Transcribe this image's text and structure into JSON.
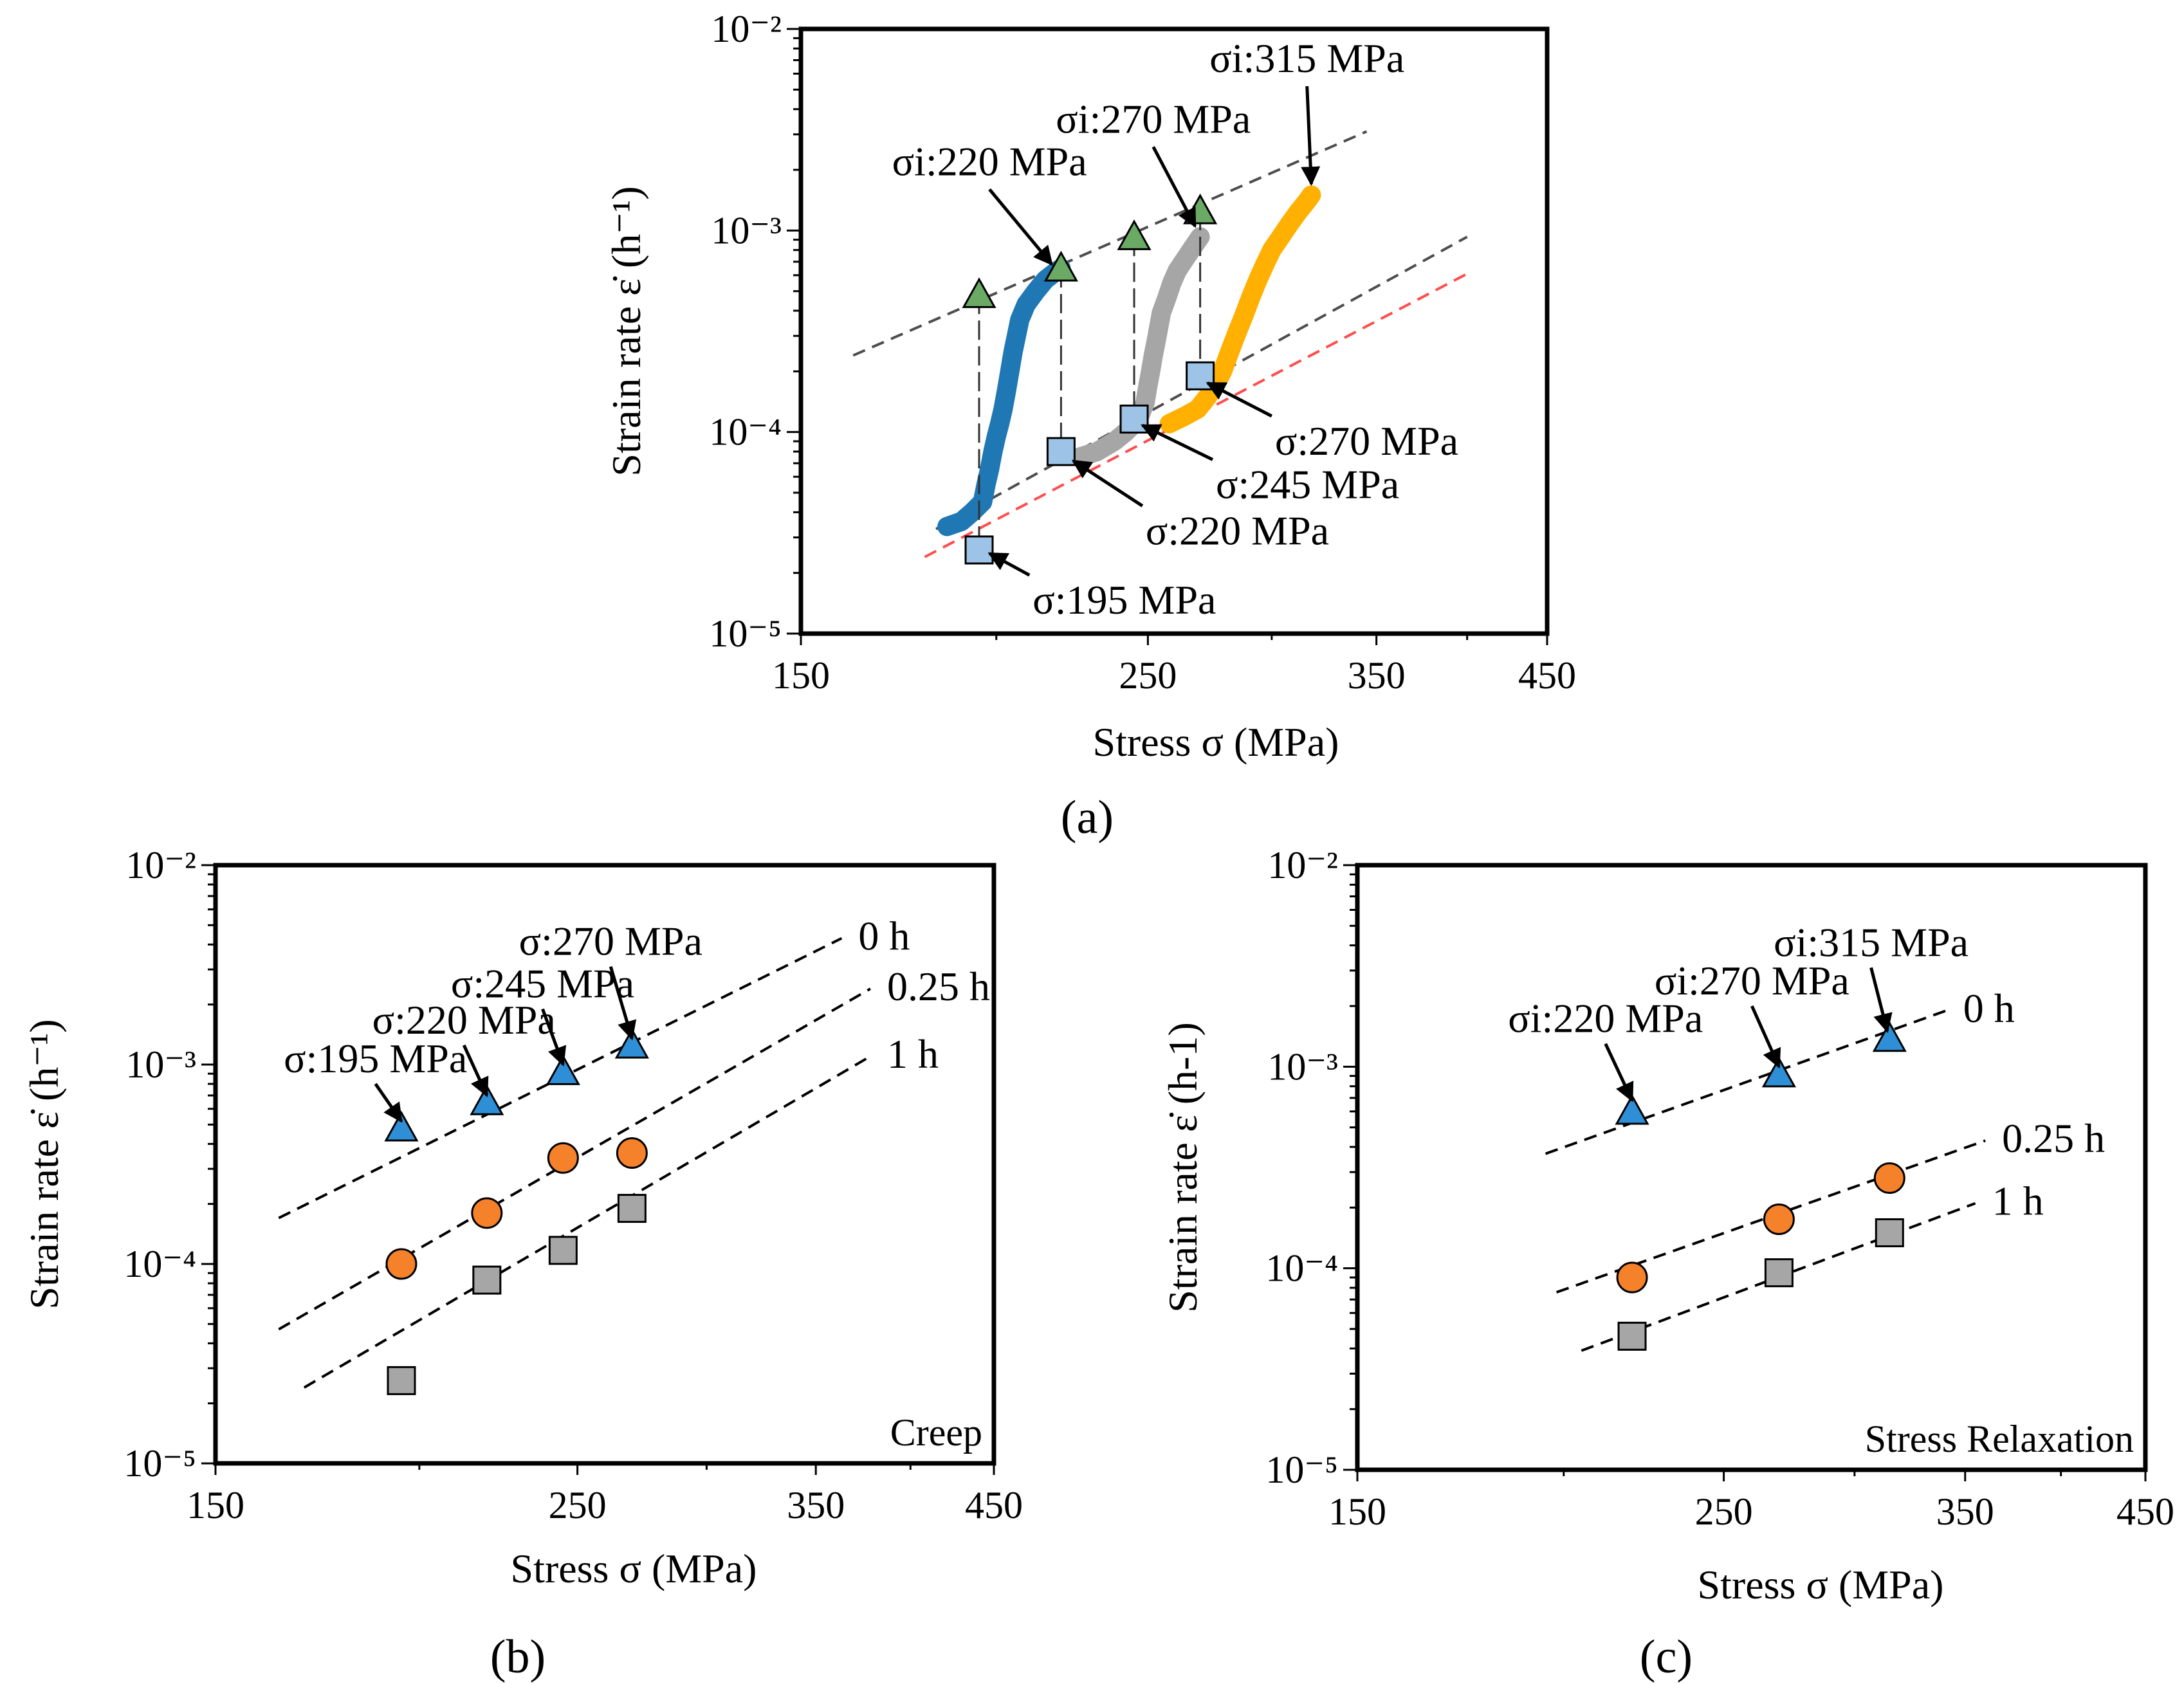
{
  "chart_data": [
    {
      "id": "a",
      "type": "scatter",
      "panel_label": "(a)",
      "xlabel": "Stress σ (MPa)",
      "ylabel": "Strain rate ε̇ (h⁻¹)",
      "x_ticks": [
        "150",
        "250",
        "350",
        "450"
      ],
      "y_ticks": [
        "10⁻²",
        "10⁻³",
        "10⁻⁴",
        "10⁻⁵"
      ],
      "xlim": [
        150,
        450
      ],
      "ylim": [
        1e-05,
        0.01
      ],
      "colors": {
        "blue": "#1f77b4",
        "gray": "#a6a6a6",
        "orange": "#ffb000",
        "triangle": "#6aaa64",
        "square": "#9dc3e6",
        "refline": "#4d4d4d",
        "redline": "#ff4d4d"
      },
      "relaxation_curves": [
        {
          "name": "σi:220 MPa",
          "color": "blue",
          "points": [
            [
              186,
              3.4e-05
            ],
            [
              190,
              3.6e-05
            ],
            [
              193,
              4e-05
            ],
            [
              196,
              4.5e-05
            ],
            [
              197,
              5.5e-05
            ],
            [
              198,
              6.5e-05
            ],
            [
              199,
              8e-05
            ],
            [
              200,
              9.5e-05
            ],
            [
              201,
              0.00011
            ],
            [
              202,
              0.00013
            ],
            [
              203,
              0.00016
            ],
            [
              204,
              0.0002
            ],
            [
              205,
              0.00025
            ],
            [
              206,
              0.0003
            ],
            [
              207,
              0.00036
            ],
            [
              209,
              0.00043
            ],
            [
              212,
              0.0005
            ],
            [
              215,
              0.00057
            ],
            [
              218,
              0.00062
            ],
            [
              220,
              0.00065
            ]
          ]
        },
        {
          "name": "σi:270 MPa",
          "color": "gray",
          "points": [
            [
              226,
              7.5e-05
            ],
            [
              232,
              8e-05
            ],
            [
              238,
              9e-05
            ],
            [
              242,
              0.0001
            ],
            [
              245,
              0.00011
            ],
            [
              247,
              0.00012
            ],
            [
              249,
              0.00014
            ],
            [
              250,
              0.00017
            ],
            [
              251,
              0.0002
            ],
            [
              252,
              0.00024
            ],
            [
              253,
              0.00028
            ],
            [
              254,
              0.00033
            ],
            [
              255,
              0.00039
            ],
            [
              257,
              0.00046
            ],
            [
              259,
              0.00055
            ],
            [
              261,
              0.00063
            ],
            [
              264,
              0.00072
            ],
            [
              267,
              0.00082
            ],
            [
              270,
              0.00093
            ]
          ]
        },
        {
          "name": "σi:315 MPa",
          "color": "orange",
          "points": [
            [
              258,
              0.00011
            ],
            [
              264,
              0.00012
            ],
            [
              269,
              0.00013
            ],
            [
              273,
              0.00015
            ],
            [
              276,
              0.00017
            ],
            [
              279,
              0.0002
            ],
            [
              282,
              0.00025
            ],
            [
              285,
              0.00031
            ],
            [
              288,
              0.00038
            ],
            [
              291,
              0.00047
            ],
            [
              294,
              0.00057
            ],
            [
              297,
              0.00068
            ],
            [
              300,
              0.0008
            ],
            [
              304,
              0.00093
            ],
            [
              308,
              0.00108
            ],
            [
              312,
              0.00124
            ],
            [
              316,
              0.0014
            ],
            [
              318,
              0.0015
            ]
          ]
        }
      ],
      "triangles": [
        [
          195,
          0.00048
        ],
        [
          220,
          0.00065
        ],
        [
          245,
          0.00093
        ],
        [
          270,
          0.00125
        ]
      ],
      "squares": [
        [
          195,
          2.6e-05
        ],
        [
          220,
          8e-05
        ],
        [
          245,
          0.000116
        ],
        [
          270,
          0.00019
        ]
      ],
      "ref_lines": [
        {
          "color": "refline",
          "from": [
            162,
            0.00024
          ],
          "to": [
            345,
            0.0031
          ]
        },
        {
          "color": "refline",
          "from": [
            183,
            3.3e-05
          ],
          "to": [
            400,
            0.00093
          ]
        },
        {
          "color": "redline",
          "from": [
            180,
            2.4e-05
          ],
          "to": [
            400,
            0.00061
          ]
        }
      ],
      "annotations": [
        {
          "text": "σi:315 MPa",
          "from": [
            316,
            0.0052
          ],
          "to": [
            318,
            0.0017
          ]
        },
        {
          "text": "σi:270 MPa",
          "from": [
            252,
            0.0026
          ],
          "to": [
            268,
            0.00105
          ]
        },
        {
          "text": "σi:220 MPa",
          "from": [
            198,
            0.0016
          ],
          "to": [
            217,
            0.00068
          ]
        },
        {
          "text": "σ:270 MPa",
          "from": [
            300,
            0.00012
          ],
          "to": [
            273,
            0.000175
          ]
        },
        {
          "text": "σ:245 MPa",
          "from": [
            275,
            7.3e-05
          ],
          "to": [
            248,
            0.000108
          ]
        },
        {
          "text": "σ:220 MPa",
          "from": [
            248,
            4.3e-05
          ],
          "to": [
            224,
            7.2e-05
          ]
        },
        {
          "text": "σ:195 MPa",
          "from": [
            210,
            1.95e-05
          ],
          "to": [
            198,
            2.5e-05
          ]
        }
      ]
    },
    {
      "id": "b",
      "type": "scatter",
      "panel_label": "(b)",
      "corner_label": "Creep",
      "xlabel": "Stress σ (MPa)",
      "ylabel": "Strain rate ε̇ (h⁻¹)",
      "x_ticks": [
        "150",
        "250",
        "350",
        "450"
      ],
      "y_ticks": [
        "10⁻²",
        "10⁻³",
        "10⁻⁴",
        "10⁻⁵"
      ],
      "xlim": [
        150,
        450
      ],
      "ylim": [
        1e-05,
        0.01
      ],
      "colors": {
        "triangle": "#2e8fd6",
        "circle": "#f5822a",
        "square": "#a6a6a6"
      },
      "series": [
        {
          "name": "0 h",
          "marker": "triangle",
          "x": [
            195,
            220,
            245,
            270
          ],
          "y": [
            0.00048,
            0.00065,
            0.00092,
            0.00125
          ]
        },
        {
          "name": "0.25 h",
          "marker": "circle",
          "x": [
            195,
            220,
            245,
            270
          ],
          "y": [
            0.0001,
            0.00018,
            0.00034,
            0.00036
          ]
        },
        {
          "name": "1 h",
          "marker": "square",
          "x": [
            195,
            220,
            245,
            270
          ],
          "y": [
            2.6e-05,
            8.3e-05,
            0.000117,
            0.00019
          ]
        }
      ],
      "fit_lines": [
        {
          "label": "0 h",
          "from": [
            164,
            0.00017
          ],
          "to": [
            363,
            0.0043
          ]
        },
        {
          "label": "0.25 h",
          "from": [
            164,
            4.7e-05
          ],
          "to": [
            378,
            0.0024
          ]
        },
        {
          "label": "1 h",
          "from": [
            170,
            2.4e-05
          ],
          "to": [
            378,
            0.0011
          ]
        }
      ],
      "annotations": [
        {
          "text": "σ:270 MPa",
          "from": [
            262,
            0.0031
          ],
          "to": [
            270,
            0.00135
          ]
        },
        {
          "text": "σ:245 MPa",
          "from": [
            238,
            0.0019
          ],
          "to": [
            245,
            0.001
          ]
        },
        {
          "text": "σ:220 MPa",
          "from": [
            213,
            0.00125
          ],
          "to": [
            220,
            0.0007
          ]
        },
        {
          "text": "σ:195 MPa",
          "from": [
            188,
            0.0008
          ],
          "to": [
            195,
            0.00052
          ]
        }
      ]
    },
    {
      "id": "c",
      "type": "scatter",
      "panel_label": "(c)",
      "corner_label": "Stress Relaxation",
      "xlabel": "Stress σ (MPa)",
      "ylabel": "Strain rate ε̇ (h-1)",
      "x_ticks": [
        "150",
        "250",
        "350",
        "450"
      ],
      "y_ticks": [
        "10⁻²",
        "10⁻³",
        "10⁻⁴",
        "10⁻⁵"
      ],
      "xlim": [
        150,
        450
      ],
      "ylim": [
        1e-05,
        0.01
      ],
      "colors": {
        "triangle": "#2e8fd6",
        "circle": "#f5822a",
        "square": "#a6a6a6"
      },
      "series": [
        {
          "name": "0 h",
          "marker": "triangle",
          "x": [
            220,
            270,
            315
          ],
          "y": [
            0.0006,
            0.00092,
            0.00138
          ]
        },
        {
          "name": "0.25 h",
          "marker": "circle",
          "x": [
            220,
            270,
            315
          ],
          "y": [
            9e-05,
            0.000175,
            0.00028
          ]
        },
        {
          "name": "1 h",
          "marker": "square",
          "x": [
            220,
            270,
            315
          ],
          "y": [
            4.6e-05,
            9.5e-05,
            0.00015
          ]
        }
      ],
      "fit_lines": [
        {
          "label": "0 h",
          "from": [
            195,
            0.00037
          ],
          "to": [
            341,
            0.0019
          ]
        },
        {
          "label": "0.25 h",
          "from": [
            198,
            7.6e-05
          ],
          "to": [
            360,
            0.00043
          ]
        },
        {
          "label": "1 h",
          "from": [
            205,
            3.9e-05
          ],
          "to": [
            355,
            0.00021
          ]
        }
      ],
      "annotations": [
        {
          "text": "σi:315 MPa",
          "from": [
            307,
            0.0031
          ],
          "to": [
            314,
            0.0015
          ]
        },
        {
          "text": "σi:270 MPa",
          "from": [
            260,
            0.002
          ],
          "to": [
            270,
            0.001
          ]
        },
        {
          "text": "σi:220 MPa",
          "from": [
            212,
            0.0013
          ],
          "to": [
            220,
            0.00068
          ]
        }
      ]
    }
  ]
}
